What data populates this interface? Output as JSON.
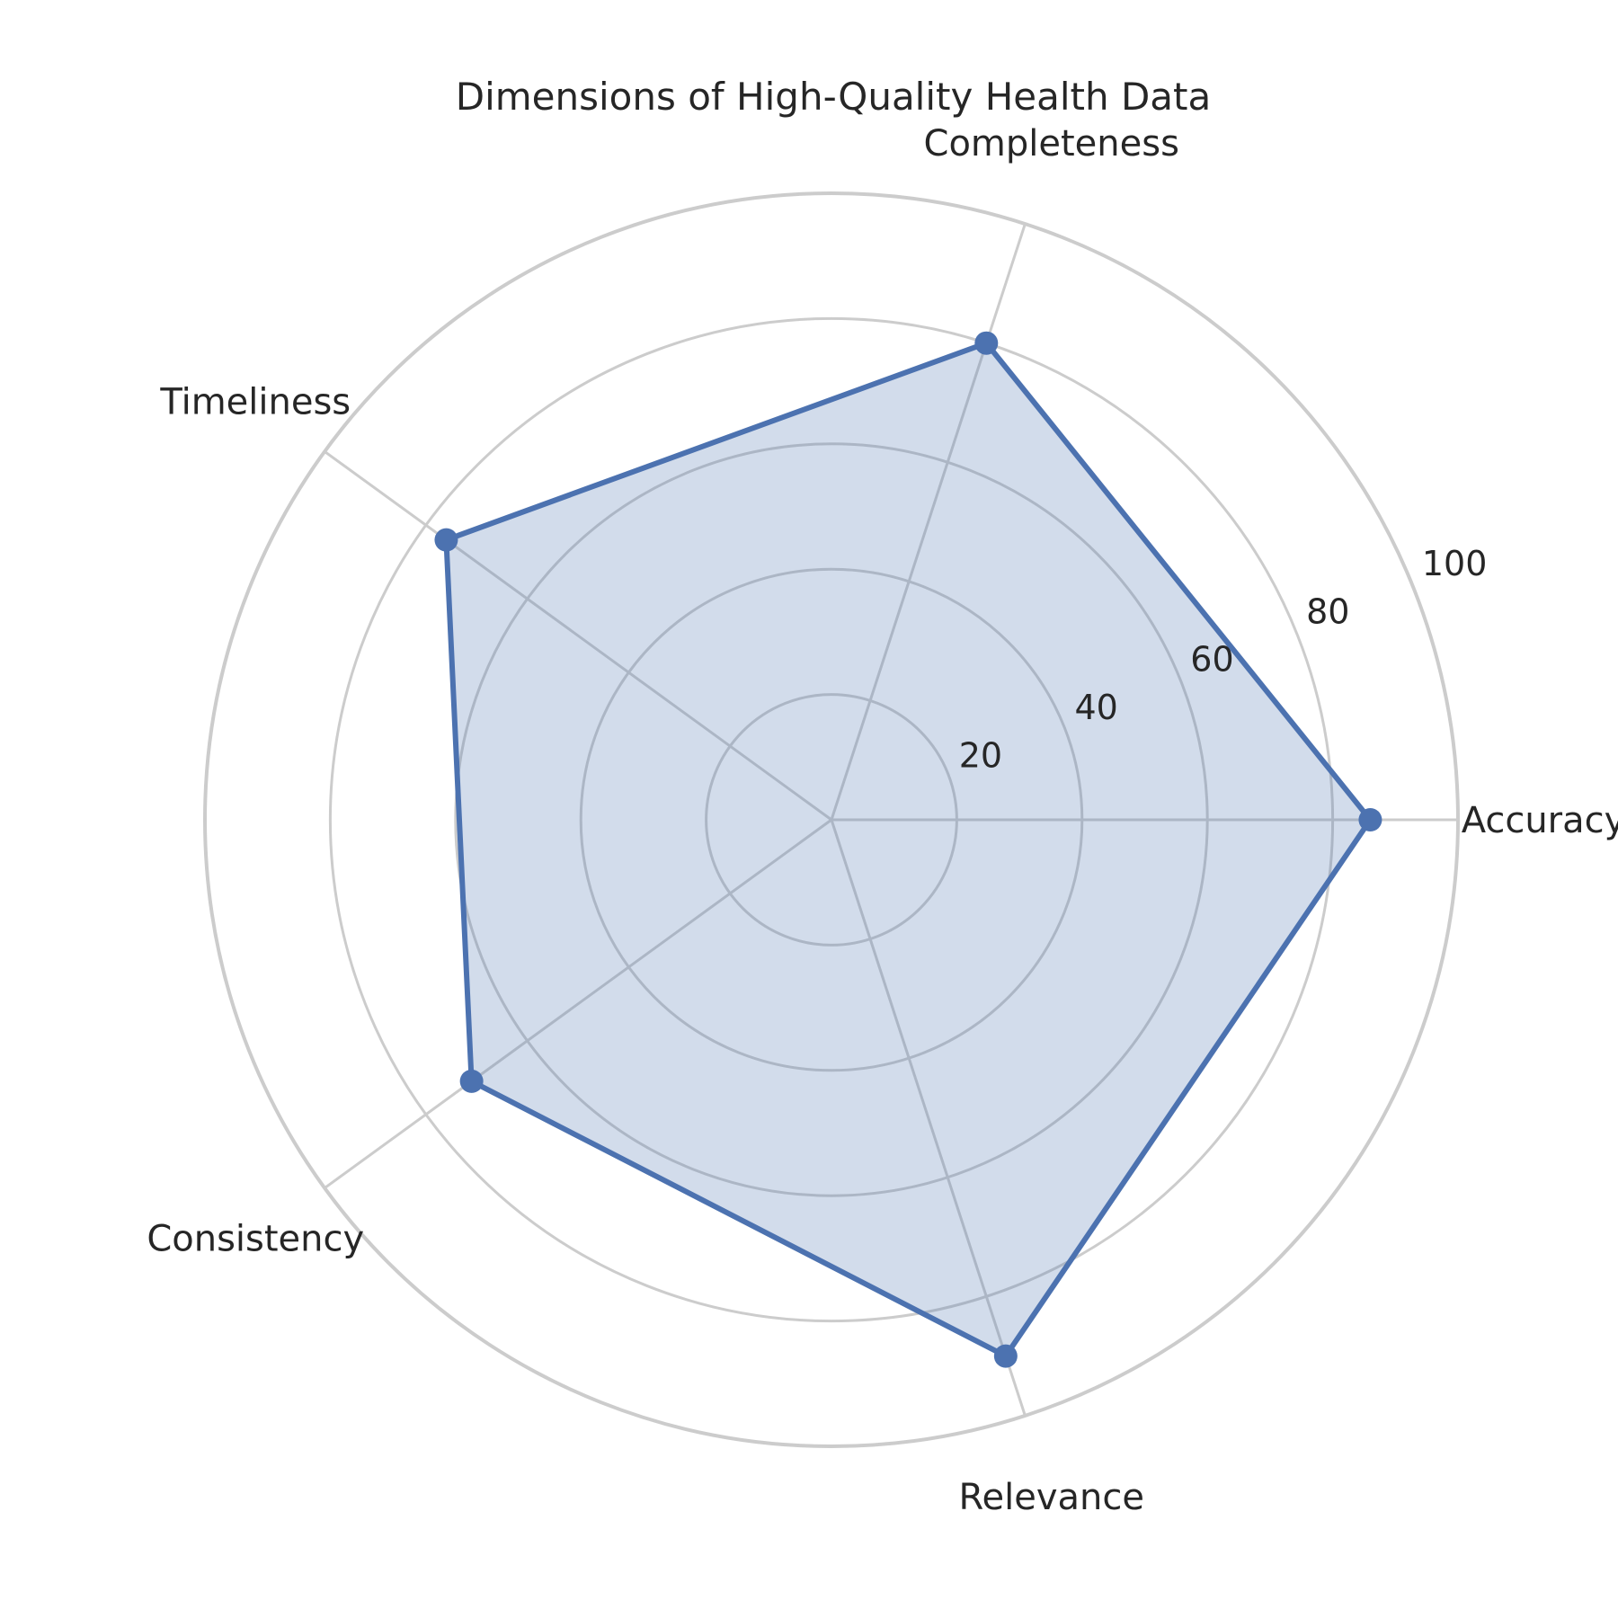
{
  "chart_data": {
    "type": "radar",
    "title": "Dimensions of High-Quality Health Data",
    "categories": [
      "Accuracy",
      "Completeness",
      "Timeliness",
      "Consistency",
      "Relevance"
    ],
    "values": [
      86,
      80,
      76,
      71,
      90
    ],
    "rlim": [
      0,
      100
    ],
    "rticks": [
      20,
      40,
      60,
      80,
      100
    ],
    "rtick_labels": [
      "20",
      "40",
      "60",
      "80",
      "100"
    ],
    "grid": true,
    "colors": {
      "line": "#4c72b0",
      "fill": "#4c72b0",
      "grid": "#cccccc"
    }
  }
}
